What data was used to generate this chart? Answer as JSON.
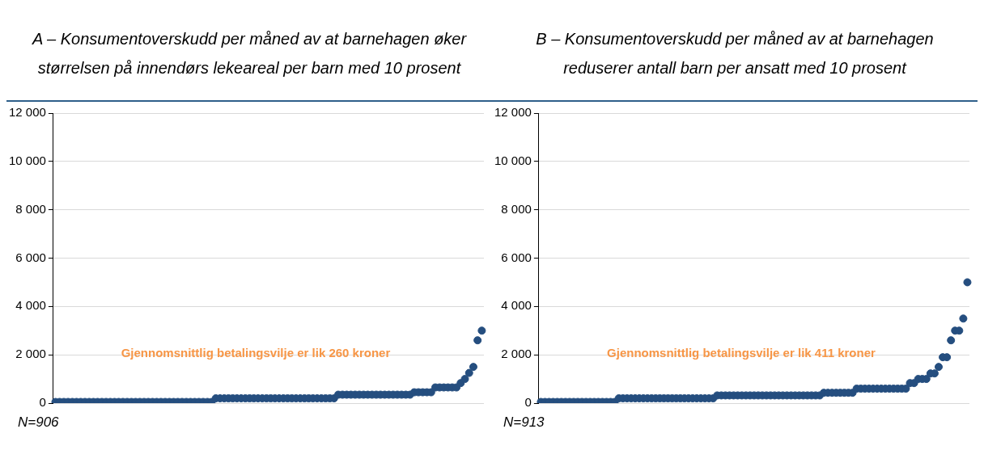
{
  "chart_data": [
    {
      "type": "scatter",
      "title": "A – Konsumentoverskudd per måned av at barnehagen øker størrelsen på innendørs lekeareal per barn med 10 prosent",
      "categories": [
        null,
        null,
        null,
        null,
        null,
        null,
        null,
        null,
        null,
        null,
        null,
        null,
        null,
        null,
        null,
        null,
        null,
        null,
        null,
        null,
        null,
        null,
        null,
        null,
        null,
        null,
        null,
        null,
        null,
        null,
        null,
        null,
        null,
        null,
        null,
        null,
        null,
        null,
        null,
        null,
        null,
        null,
        null,
        null,
        null,
        null,
        null,
        null,
        null,
        null,
        null,
        null,
        null,
        null,
        null,
        null,
        null,
        null,
        null,
        null,
        null,
        null,
        null,
        null,
        null,
        null,
        null,
        null,
        null,
        null,
        null,
        null,
        null,
        null,
        null,
        null,
        null,
        null,
        null,
        null,
        null,
        null,
        null,
        null,
        null,
        null,
        null,
        null,
        null,
        null,
        null,
        null,
        null,
        null,
        null,
        null,
        null,
        null,
        null,
        null,
        null,
        null
      ],
      "series": [
        {
          "color": "#254e7f",
          "values": [
            50,
            50,
            50,
            50,
            50,
            50,
            50,
            50,
            50,
            50,
            50,
            50,
            50,
            50,
            50,
            50,
            50,
            50,
            50,
            50,
            50,
            50,
            50,
            50,
            50,
            50,
            50,
            50,
            50,
            50,
            50,
            50,
            50,
            50,
            50,
            50,
            50,
            50,
            200,
            200,
            200,
            200,
            200,
            200,
            200,
            200,
            200,
            200,
            200,
            200,
            200,
            200,
            200,
            200,
            200,
            200,
            200,
            200,
            200,
            200,
            200,
            200,
            200,
            200,
            200,
            200,
            200,
            350,
            350,
            350,
            350,
            350,
            350,
            350,
            350,
            350,
            350,
            350,
            350,
            350,
            350,
            350,
            350,
            350,
            350,
            450,
            450,
            450,
            450,
            450,
            650,
            650,
            650,
            650,
            650,
            650,
            830,
            1000,
            1250,
            1500,
            2600,
            3000
          ]
        }
      ],
      "ylim": [
        0,
        12000
      ],
      "yticks": [
        0,
        {
          "value": 2000,
          "label": "2 000"
        },
        {
          "value": 4000,
          "label": "4 000"
        },
        {
          "value": 6000,
          "label": "6 000"
        },
        {
          "value": 8000,
          "label": "8 000"
        },
        {
          "value": 10000,
          "label": "10 000"
        },
        {
          "value": 12000,
          "label": "12 000"
        }
      ],
      "grid": "y",
      "legend": false,
      "marker": "circle",
      "tick_labels": "y",
      "annotations": [
        "Gjennomsnittlig betalingsvilje er lik 260 kroner",
        "N=906"
      ]
    },
    {
      "type": "scatter",
      "title": "B – Konsumentoverskudd per måned av at barnehagen reduserer antall barn per ansatt med 10 prosent",
      "categories": [
        null,
        null,
        null,
        null,
        null,
        null,
        null,
        null,
        null,
        null,
        null,
        null,
        null,
        null,
        null,
        null,
        null,
        null,
        null,
        null,
        null,
        null,
        null,
        null,
        null,
        null,
        null,
        null,
        null,
        null,
        null,
        null,
        null,
        null,
        null,
        null,
        null,
        null,
        null,
        null,
        null,
        null,
        null,
        null,
        null,
        null,
        null,
        null,
        null,
        null,
        null,
        null,
        null,
        null,
        null,
        null,
        null,
        null,
        null,
        null,
        null,
        null,
        null,
        null,
        null,
        null,
        null,
        null,
        null,
        null,
        null,
        null,
        null,
        null,
        null,
        null,
        null,
        null,
        null,
        null,
        null,
        null,
        null,
        null,
        null,
        null,
        null,
        null,
        null,
        null,
        null,
        null,
        null,
        null,
        null,
        null,
        null,
        null,
        null,
        null,
        null,
        null,
        null,
        null,
        null
      ],
      "series": [
        {
          "color": "#254e7f",
          "values": [
            50,
            50,
            50,
            50,
            50,
            50,
            50,
            50,
            50,
            50,
            50,
            50,
            50,
            50,
            50,
            50,
            50,
            50,
            50,
            200,
            200,
            200,
            200,
            200,
            200,
            200,
            200,
            200,
            200,
            200,
            200,
            200,
            200,
            200,
            200,
            200,
            200,
            200,
            200,
            200,
            200,
            200,
            200,
            320,
            320,
            320,
            320,
            320,
            320,
            320,
            320,
            320,
            320,
            320,
            320,
            320,
            320,
            320,
            320,
            320,
            320,
            320,
            320,
            320,
            320,
            320,
            320,
            320,
            320,
            430,
            430,
            430,
            430,
            430,
            430,
            430,
            430,
            600,
            600,
            600,
            600,
            600,
            600,
            600,
            600,
            600,
            600,
            600,
            600,
            600,
            830,
            830,
            1000,
            1000,
            1000,
            1230,
            1230,
            1500,
            1900,
            1900,
            2600,
            3000,
            3000,
            3500,
            5000
          ]
        }
      ],
      "ylim": [
        0,
        12000
      ],
      "yticks": [
        0,
        {
          "value": 2000,
          "label": "2 000"
        },
        {
          "value": 4000,
          "label": "4 000"
        },
        {
          "value": 6000,
          "label": "6 000"
        },
        {
          "value": 8000,
          "label": "8 000"
        },
        {
          "value": 10000,
          "label": "10 000"
        },
        {
          "value": 12000,
          "label": "12 000"
        }
      ],
      "grid": "y",
      "legend": false,
      "marker": "circle",
      "tick_labels": "y",
      "annotations": [
        "Gjennomsnittlig betalingsvilje er lik 411 kroner",
        "N=913"
      ]
    }
  ]
}
